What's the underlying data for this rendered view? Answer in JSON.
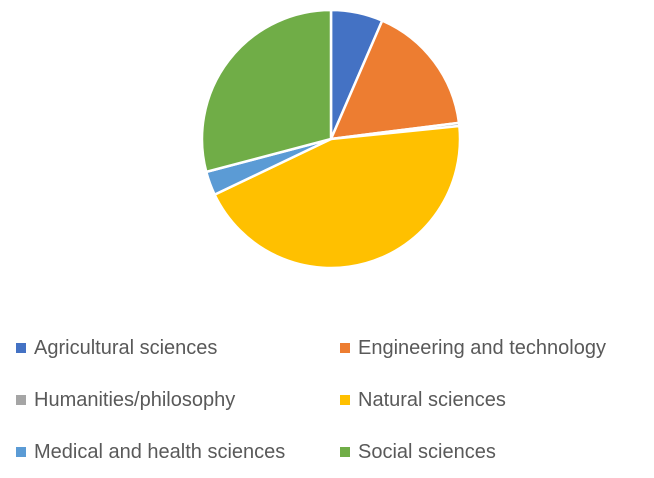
{
  "chart_data": {
    "type": "pie",
    "title": "",
    "legend_position": "bottom",
    "categories": [
      "Agricultural sciences",
      "Engineering and technology",
      "Humanities/philosophy",
      "Natural sciences",
      "Medical and health sciences",
      "Social sciences"
    ],
    "values": [
      6.5,
      16.5,
      0.4,
      44.5,
      3.0,
      29.1
    ],
    "colors": [
      "#4472C4",
      "#ED7D31",
      "#A5A5A5",
      "#FFC000",
      "#5B9BD5",
      "#70AD47"
    ]
  }
}
